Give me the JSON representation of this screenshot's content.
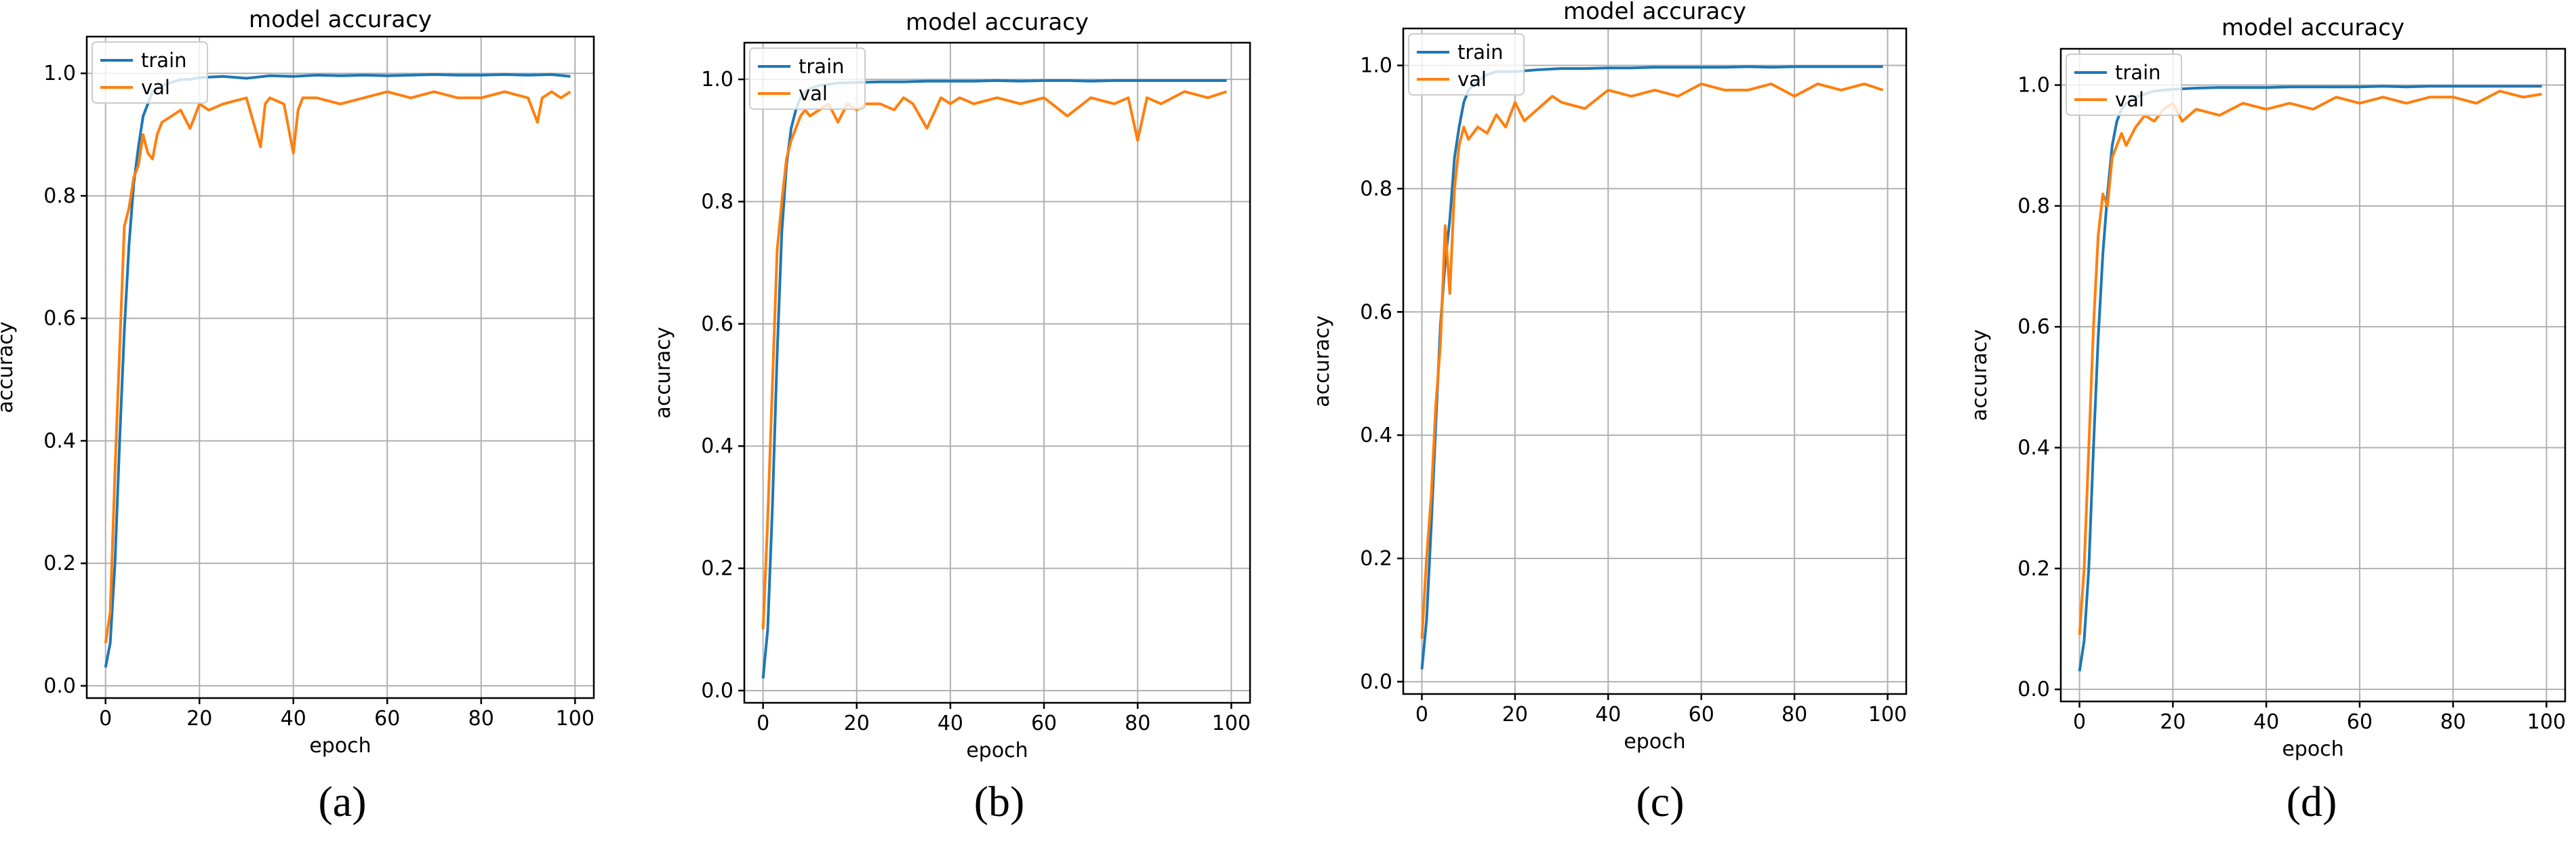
{
  "colors": {
    "train": "#1f77b4",
    "val": "#ff7f0e"
  },
  "chart_data": [
    {
      "type": "line",
      "caption": "(a)",
      "title": "model accuracy",
      "xlabel": "epoch",
      "ylabel": "accuracy",
      "xlim": [
        -4,
        104
      ],
      "ylim": [
        -0.02,
        1.06
      ],
      "xticks": [
        0,
        20,
        40,
        60,
        80,
        100
      ],
      "yticks": [
        0.0,
        0.2,
        0.4,
        0.6,
        0.8,
        1.0
      ],
      "xtick_labels": [
        "0",
        "20",
        "40",
        "60",
        "80",
        "100"
      ],
      "ytick_labels": [
        "0.0",
        "0.2",
        "0.4",
        "0.6",
        "0.8",
        "1.0"
      ],
      "grid": true,
      "legend": "upper-left",
      "series": [
        {
          "name": "train",
          "x": [
            0,
            1,
            2,
            3,
            4,
            5,
            6,
            7,
            8,
            9,
            10,
            12,
            14,
            16,
            18,
            20,
            25,
            30,
            35,
            40,
            45,
            50,
            55,
            60,
            65,
            70,
            75,
            80,
            85,
            90,
            95,
            99
          ],
          "values": [
            0.03,
            0.07,
            0.2,
            0.4,
            0.58,
            0.72,
            0.82,
            0.88,
            0.93,
            0.95,
            0.97,
            0.98,
            0.985,
            0.99,
            0.99,
            0.993,
            0.995,
            0.992,
            0.996,
            0.995,
            0.997,
            0.996,
            0.997,
            0.996,
            0.997,
            0.998,
            0.997,
            0.997,
            0.998,
            0.997,
            0.998,
            0.995
          ]
        },
        {
          "name": "val",
          "x": [
            0,
            1,
            2,
            3,
            4,
            5,
            6,
            7,
            8,
            9,
            10,
            11,
            12,
            14,
            16,
            18,
            20,
            22,
            25,
            30,
            33,
            34,
            35,
            38,
            40,
            41,
            42,
            45,
            50,
            55,
            60,
            65,
            70,
            75,
            80,
            85,
            90,
            92,
            93,
            95,
            97,
            99
          ],
          "values": [
            0.07,
            0.12,
            0.35,
            0.55,
            0.75,
            0.78,
            0.83,
            0.85,
            0.9,
            0.87,
            0.86,
            0.9,
            0.92,
            0.93,
            0.94,
            0.91,
            0.95,
            0.94,
            0.95,
            0.96,
            0.88,
            0.95,
            0.96,
            0.95,
            0.87,
            0.94,
            0.96,
            0.96,
            0.95,
            0.96,
            0.97,
            0.96,
            0.97,
            0.96,
            0.96,
            0.97,
            0.96,
            0.92,
            0.96,
            0.97,
            0.96,
            0.97
          ]
        }
      ]
    },
    {
      "type": "line",
      "caption": "(b)",
      "title": "model accuracy",
      "xlabel": "epoch",
      "ylabel": "accuracy",
      "xlim": [
        -4,
        104
      ],
      "ylim": [
        -0.02,
        1.06
      ],
      "xticks": [
        0,
        20,
        40,
        60,
        80,
        100
      ],
      "yticks": [
        0.0,
        0.2,
        0.4,
        0.6,
        0.8,
        1.0
      ],
      "xtick_labels": [
        "0",
        "20",
        "40",
        "60",
        "80",
        "100"
      ],
      "ytick_labels": [
        "0.0",
        "0.2",
        "0.4",
        "0.6",
        "0.8",
        "1.0"
      ],
      "grid": true,
      "legend": "upper-left",
      "series": [
        {
          "name": "train",
          "x": [
            0,
            1,
            2,
            3,
            4,
            5,
            6,
            7,
            8,
            9,
            10,
            12,
            14,
            16,
            20,
            25,
            30,
            35,
            40,
            45,
            50,
            55,
            60,
            65,
            70,
            75,
            80,
            85,
            90,
            95,
            99
          ],
          "values": [
            0.02,
            0.1,
            0.3,
            0.55,
            0.75,
            0.86,
            0.92,
            0.95,
            0.97,
            0.98,
            0.985,
            0.99,
            0.992,
            0.994,
            0.995,
            0.996,
            0.996,
            0.997,
            0.997,
            0.997,
            0.998,
            0.997,
            0.998,
            0.998,
            0.997,
            0.998,
            0.998,
            0.998,
            0.998,
            0.998,
            0.998
          ]
        },
        {
          "name": "val",
          "x": [
            0,
            1,
            2,
            3,
            4,
            5,
            6,
            7,
            8,
            9,
            10,
            12,
            14,
            16,
            18,
            20,
            22,
            25,
            28,
            30,
            32,
            35,
            38,
            40,
            42,
            45,
            50,
            55,
            60,
            65,
            70,
            75,
            78,
            80,
            82,
            85,
            90,
            95,
            99
          ],
          "values": [
            0.1,
            0.28,
            0.5,
            0.72,
            0.8,
            0.87,
            0.9,
            0.92,
            0.94,
            0.95,
            0.94,
            0.95,
            0.96,
            0.93,
            0.96,
            0.95,
            0.96,
            0.96,
            0.95,
            0.97,
            0.96,
            0.92,
            0.97,
            0.96,
            0.97,
            0.96,
            0.97,
            0.96,
            0.97,
            0.94,
            0.97,
            0.96,
            0.97,
            0.9,
            0.97,
            0.96,
            0.98,
            0.97,
            0.98
          ]
        }
      ]
    },
    {
      "type": "line",
      "caption": "(c)",
      "title": "model accuracy",
      "xlabel": "epoch",
      "ylabel": "accuracy",
      "xlim": [
        -4,
        104
      ],
      "ylim": [
        -0.02,
        1.06
      ],
      "xticks": [
        0,
        20,
        40,
        60,
        80,
        100
      ],
      "yticks": [
        0.0,
        0.2,
        0.4,
        0.6,
        0.8,
        1.0
      ],
      "xtick_labels": [
        "0",
        "20",
        "40",
        "60",
        "80",
        "100"
      ],
      "ytick_labels": [
        "0.0",
        "0.2",
        "0.4",
        "0.6",
        "0.8",
        "1.0"
      ],
      "grid": true,
      "legend": "upper-left",
      "series": [
        {
          "name": "train",
          "x": [
            0,
            1,
            2,
            3,
            4,
            5,
            6,
            7,
            8,
            9,
            10,
            12,
            14,
            16,
            20,
            25,
            30,
            35,
            40,
            45,
            50,
            55,
            60,
            65,
            70,
            75,
            80,
            85,
            90,
            95,
            99
          ],
          "values": [
            0.02,
            0.1,
            0.25,
            0.42,
            0.58,
            0.68,
            0.75,
            0.85,
            0.9,
            0.94,
            0.96,
            0.975,
            0.985,
            0.99,
            0.99,
            0.993,
            0.995,
            0.995,
            0.996,
            0.996,
            0.997,
            0.997,
            0.997,
            0.997,
            0.998,
            0.997,
            0.998,
            0.998,
            0.998,
            0.998,
            0.998
          ]
        },
        {
          "name": "val",
          "x": [
            0,
            1,
            2,
            3,
            4,
            5,
            6,
            7,
            8,
            9,
            10,
            12,
            14,
            16,
            18,
            20,
            22,
            25,
            28,
            30,
            35,
            40,
            45,
            50,
            55,
            60,
            65,
            70,
            75,
            80,
            85,
            90,
            95,
            99
          ],
          "values": [
            0.07,
            0.2,
            0.3,
            0.45,
            0.55,
            0.74,
            0.63,
            0.8,
            0.87,
            0.9,
            0.88,
            0.9,
            0.89,
            0.92,
            0.9,
            0.94,
            0.91,
            0.93,
            0.95,
            0.94,
            0.93,
            0.96,
            0.95,
            0.96,
            0.95,
            0.97,
            0.96,
            0.96,
            0.97,
            0.95,
            0.97,
            0.96,
            0.97,
            0.96
          ]
        }
      ]
    },
    {
      "type": "line",
      "caption": "(d)",
      "title": "model accuracy",
      "xlabel": "epoch",
      "ylabel": "accuracy",
      "xlim": [
        -4,
        104
      ],
      "ylim": [
        -0.02,
        1.06
      ],
      "xticks": [
        0,
        20,
        40,
        60,
        80,
        100
      ],
      "yticks": [
        0.0,
        0.2,
        0.4,
        0.6,
        0.8,
        1.0
      ],
      "xtick_labels": [
        "0",
        "20",
        "40",
        "60",
        "80",
        "100"
      ],
      "ytick_labels": [
        "0.0",
        "0.2",
        "0.4",
        "0.6",
        "0.8",
        "1.0"
      ],
      "grid": true,
      "legend": "upper-left",
      "series": [
        {
          "name": "train",
          "x": [
            0,
            1,
            2,
            3,
            4,
            5,
            6,
            7,
            8,
            9,
            10,
            12,
            14,
            16,
            20,
            25,
            30,
            35,
            40,
            45,
            50,
            55,
            60,
            65,
            70,
            75,
            80,
            85,
            90,
            95,
            99
          ],
          "values": [
            0.03,
            0.08,
            0.2,
            0.4,
            0.58,
            0.72,
            0.82,
            0.9,
            0.94,
            0.96,
            0.97,
            0.98,
            0.985,
            0.99,
            0.993,
            0.995,
            0.996,
            0.996,
            0.996,
            0.997,
            0.997,
            0.997,
            0.997,
            0.998,
            0.997,
            0.998,
            0.998,
            0.998,
            0.998,
            0.998,
            0.998
          ]
        },
        {
          "name": "val",
          "x": [
            0,
            1,
            2,
            3,
            4,
            5,
            6,
            7,
            8,
            9,
            10,
            12,
            14,
            16,
            18,
            20,
            22,
            25,
            30,
            35,
            40,
            45,
            50,
            55,
            60,
            65,
            70,
            75,
            80,
            85,
            90,
            95,
            99
          ],
          "values": [
            0.09,
            0.2,
            0.4,
            0.6,
            0.75,
            0.82,
            0.8,
            0.88,
            0.9,
            0.92,
            0.9,
            0.93,
            0.95,
            0.94,
            0.96,
            0.97,
            0.94,
            0.96,
            0.95,
            0.97,
            0.96,
            0.97,
            0.96,
            0.98,
            0.97,
            0.98,
            0.97,
            0.98,
            0.98,
            0.97,
            0.99,
            0.98,
            0.985
          ]
        }
      ]
    }
  ]
}
